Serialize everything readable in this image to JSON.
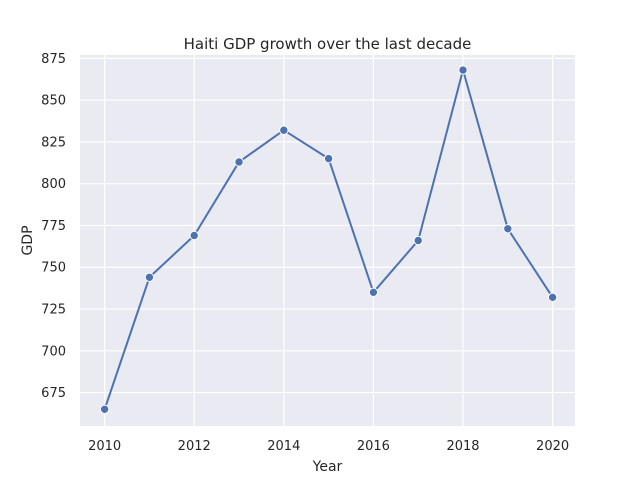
{
  "chart_data": {
    "type": "line",
    "title": "Haiti GDP growth over the last decade",
    "xlabel": "Year",
    "ylabel": "GDP",
    "x": [
      2010,
      2011,
      2012,
      2013,
      2014,
      2015,
      2016,
      2017,
      2018,
      2019,
      2020
    ],
    "series": [
      {
        "values": [
          665,
          744,
          769,
          813,
          832,
          815,
          735,
          766,
          868,
          773,
          732
        ]
      }
    ],
    "xlim": [
      2009.45,
      2020.5
    ],
    "ylim": [
      655,
      877
    ],
    "x_ticks": [
      "2010",
      "2012",
      "2014",
      "2016",
      "2018",
      "2020"
    ],
    "y_ticks": [
      "675",
      "700",
      "725",
      "750",
      "775",
      "800",
      "825",
      "850",
      "875"
    ],
    "grid": true,
    "style": {
      "background": "#eaeaf2",
      "grid_color": "#ffffff",
      "line_color": "#4c72b0",
      "marker_edge": "#ffffff"
    }
  }
}
